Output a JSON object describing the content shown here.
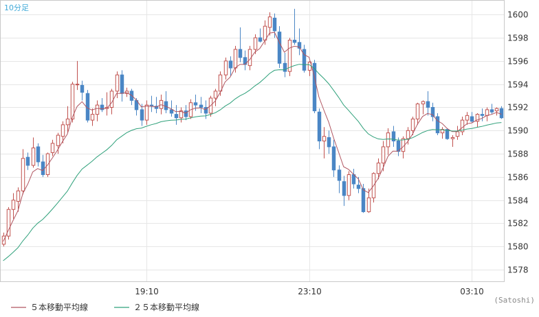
{
  "chart_data": {
    "type": "candlestick",
    "period_label": "10分足",
    "credit": "(Satoshi)",
    "ylim": [
      1577,
      1601.2
    ],
    "y_ticks": [
      1578,
      1580,
      1582,
      1584,
      1586,
      1588,
      1590,
      1592,
      1594,
      1596,
      1598,
      1600
    ],
    "x_ticks": [
      {
        "index": 29,
        "label": "19:10"
      },
      {
        "index": 62,
        "label": "23:10"
      },
      {
        "index": 95,
        "label": "03:10"
      }
    ],
    "grid": true,
    "legend_position": "bottom-left",
    "colors": {
      "up": "#c0504d",
      "down": "#4a86c5",
      "ma5": "#b05560",
      "ma25": "#2ea07a"
    },
    "legend": [
      {
        "name": "５本移動平均線",
        "color": "#b05560"
      },
      {
        "name": "２５本移動平均線",
        "color": "#2ea07a"
      }
    ],
    "candles": [
      [
        1580.2,
        1581.2,
        1580.0,
        1580.9
      ],
      [
        1580.9,
        1583.4,
        1580.6,
        1583.2
      ],
      [
        1583.2,
        1584.6,
        1582.4,
        1584.0
      ],
      [
        1583.9,
        1585.1,
        1583.0,
        1584.8
      ],
      [
        1584.8,
        1588.4,
        1584.5,
        1587.6
      ],
      [
        1587.7,
        1588.1,
        1586.6,
        1587.0
      ],
      [
        1587.0,
        1589.4,
        1586.8,
        1588.5
      ],
      [
        1588.6,
        1588.9,
        1586.9,
        1587.3
      ],
      [
        1587.3,
        1587.9,
        1586.0,
        1586.2
      ],
      [
        1586.2,
        1588.1,
        1586.0,
        1588.0
      ],
      [
        1588.1,
        1589.2,
        1587.8,
        1588.9
      ],
      [
        1588.7,
        1589.8,
        1588.0,
        1589.6
      ],
      [
        1589.5,
        1590.8,
        1588.9,
        1590.5
      ],
      [
        1590.5,
        1592.1,
        1589.8,
        1591.0
      ],
      [
        1591.0,
        1594.2,
        1590.7,
        1594.0
      ],
      [
        1594.0,
        1596.0,
        1593.5,
        1594.0
      ],
      [
        1593.9,
        1594.3,
        1592.6,
        1593.3
      ],
      [
        1593.2,
        1593.5,
        1590.7,
        1590.9
      ],
      [
        1590.9,
        1591.9,
        1590.4,
        1591.4
      ],
      [
        1591.4,
        1592.6,
        1590.8,
        1592.2
      ],
      [
        1592.2,
        1592.8,
        1591.6,
        1591.8
      ],
      [
        1591.9,
        1593.3,
        1591.3,
        1592.0
      ],
      [
        1592.0,
        1593.6,
        1591.4,
        1593.4
      ],
      [
        1593.4,
        1595.1,
        1592.8,
        1594.8
      ],
      [
        1594.8,
        1595.2,
        1592.5,
        1593.2
      ],
      [
        1593.2,
        1593.7,
        1592.9,
        1593.4
      ],
      [
        1593.4,
        1593.6,
        1592.2,
        1592.6
      ],
      [
        1592.6,
        1592.8,
        1591.3,
        1591.8
      ],
      [
        1591.8,
        1592.3,
        1590.4,
        1590.9
      ],
      [
        1590.9,
        1592.6,
        1590.5,
        1592.2
      ],
      [
        1592.2,
        1593.0,
        1591.6,
        1592.1
      ],
      [
        1592.1,
        1592.9,
        1591.5,
        1591.9
      ],
      [
        1591.9,
        1593.1,
        1591.4,
        1592.6
      ],
      [
        1592.5,
        1593.4,
        1591.5,
        1591.8
      ],
      [
        1591.8,
        1592.6,
        1591.2,
        1591.5
      ],
      [
        1591.4,
        1592.2,
        1590.5,
        1591.1
      ],
      [
        1591.1,
        1592.0,
        1590.7,
        1591.7
      ],
      [
        1591.7,
        1592.2,
        1590.9,
        1591.2
      ],
      [
        1591.2,
        1592.7,
        1591.0,
        1592.4
      ],
      [
        1592.4,
        1593.1,
        1591.7,
        1592.2
      ],
      [
        1592.2,
        1592.9,
        1591.5,
        1592.0
      ],
      [
        1592.0,
        1592.6,
        1591.0,
        1591.5
      ],
      [
        1591.5,
        1593.0,
        1591.2,
        1592.8
      ],
      [
        1592.8,
        1593.6,
        1592.1,
        1593.4
      ],
      [
        1593.4,
        1595.1,
        1593.0,
        1594.8
      ],
      [
        1594.8,
        1596.3,
        1594.4,
        1596.0
      ],
      [
        1596.0,
        1596.4,
        1594.7,
        1595.4
      ],
      [
        1595.4,
        1597.3,
        1595.0,
        1597.0
      ],
      [
        1597.0,
        1598.9,
        1595.9,
        1596.3
      ],
      [
        1596.3,
        1596.9,
        1595.2,
        1595.7
      ],
      [
        1595.6,
        1597.3,
        1595.2,
        1597.0
      ],
      [
        1597.0,
        1598.3,
        1596.6,
        1598.0
      ],
      [
        1598.0,
        1598.8,
        1597.6,
        1597.7
      ],
      [
        1597.8,
        1599.5,
        1597.4,
        1599.0
      ],
      [
        1598.9,
        1600.2,
        1598.2,
        1599.8
      ],
      [
        1599.7,
        1600.1,
        1598.0,
        1598.6
      ],
      [
        1598.5,
        1599.0,
        1595.4,
        1595.8
      ],
      [
        1595.8,
        1596.7,
        1594.6,
        1595.1
      ],
      [
        1595.1,
        1598.0,
        1594.7,
        1597.8
      ],
      [
        1597.8,
        1600.5,
        1597.4,
        1597.6
      ],
      [
        1597.6,
        1598.8,
        1596.5,
        1597.1
      ],
      [
        1597.0,
        1597.4,
        1595.0,
        1595.2
      ],
      [
        1595.2,
        1596.0,
        1594.7,
        1595.9
      ],
      [
        1595.8,
        1596.1,
        1591.5,
        1591.7
      ],
      [
        1591.6,
        1591.9,
        1588.4,
        1589.1
      ],
      [
        1589.1,
        1590.3,
        1587.6,
        1589.5
      ],
      [
        1589.4,
        1590.0,
        1588.0,
        1588.6
      ],
      [
        1588.6,
        1589.2,
        1586.0,
        1586.6
      ],
      [
        1586.6,
        1587.0,
        1584.6,
        1585.7
      ],
      [
        1585.6,
        1586.1,
        1583.5,
        1584.4
      ],
      [
        1584.4,
        1586.5,
        1584.0,
        1586.2
      ],
      [
        1586.2,
        1586.7,
        1585.0,
        1585.4
      ],
      [
        1585.3,
        1586.0,
        1584.6,
        1585.0
      ],
      [
        1585.0,
        1585.4,
        1582.9,
        1583.0
      ],
      [
        1583.0,
        1585.0,
        1582.9,
        1584.2
      ],
      [
        1584.2,
        1586.4,
        1583.8,
        1586.3
      ],
      [
        1586.3,
        1587.6,
        1585.8,
        1587.2
      ],
      [
        1587.2,
        1589.1,
        1586.5,
        1588.6
      ],
      [
        1588.6,
        1590.2,
        1587.9,
        1589.8
      ],
      [
        1589.9,
        1590.4,
        1588.6,
        1589.1
      ],
      [
        1589.1,
        1589.4,
        1587.8,
        1588.2
      ],
      [
        1588.2,
        1589.5,
        1587.6,
        1589.3
      ],
      [
        1589.3,
        1590.3,
        1588.8,
        1590.0
      ],
      [
        1590.0,
        1591.2,
        1589.6,
        1591.0
      ],
      [
        1591.0,
        1592.4,
        1590.5,
        1592.3
      ],
      [
        1592.3,
        1592.6,
        1591.4,
        1592.5
      ],
      [
        1592.5,
        1593.4,
        1591.3,
        1592.0
      ],
      [
        1592.0,
        1592.4,
        1590.8,
        1591.2
      ],
      [
        1591.2,
        1591.5,
        1589.6,
        1589.8
      ],
      [
        1589.8,
        1590.3,
        1589.3,
        1590.1
      ],
      [
        1590.1,
        1590.2,
        1589.2,
        1589.3
      ],
      [
        1589.3,
        1589.6,
        1588.6,
        1589.4
      ],
      [
        1589.5,
        1590.4,
        1589.2,
        1589.9
      ],
      [
        1589.9,
        1591.2,
        1589.6,
        1590.9
      ],
      [
        1590.9,
        1591.6,
        1590.5,
        1591.3
      ],
      [
        1591.2,
        1591.6,
        1590.7,
        1590.8
      ],
      [
        1590.8,
        1591.5,
        1590.3,
        1591.4
      ],
      [
        1591.4,
        1591.9,
        1590.8,
        1591.3
      ],
      [
        1591.3,
        1592.0,
        1590.8,
        1591.8
      ],
      [
        1591.8,
        1592.3,
        1591.4,
        1591.6
      ],
      [
        1591.7,
        1592.0,
        1591.3,
        1591.9
      ],
      [
        1591.9,
        1592.1,
        1591.0,
        1591.1
      ]
    ]
  }
}
